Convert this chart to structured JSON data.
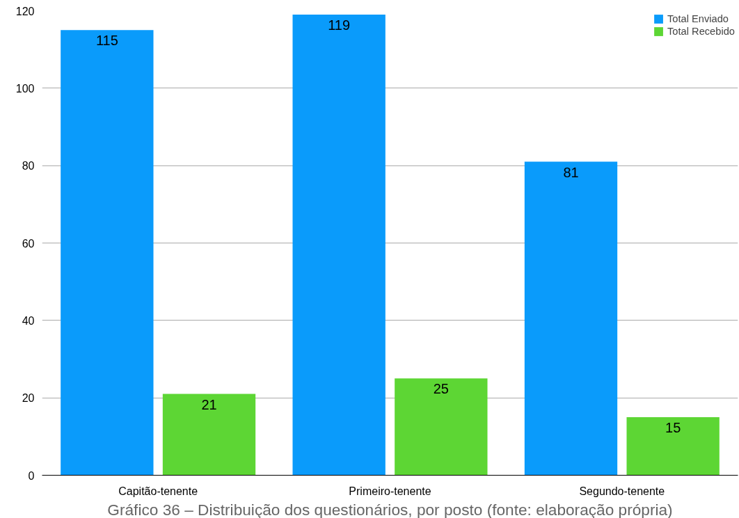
{
  "chart_data": {
    "type": "bar",
    "categories": [
      "Capitão-tenente",
      "Primeiro-tenente",
      "Segundo-tenente"
    ],
    "series": [
      {
        "name": "Total Enviado",
        "color": "#0a9bfb",
        "values": [
          115,
          119,
          81
        ]
      },
      {
        "name": "Total Recebido",
        "color": "#5dd634",
        "values": [
          21,
          25,
          15
        ]
      }
    ],
    "ylim": [
      0,
      120
    ],
    "yticks": [
      0,
      20,
      40,
      60,
      80,
      100,
      120
    ],
    "grid": "y",
    "legend": "top right",
    "data_labels": true,
    "annotations": [
      "Gráfico 36 – Distribuição dos questionários, por posto (fonte: elaboração própria)"
    ]
  }
}
